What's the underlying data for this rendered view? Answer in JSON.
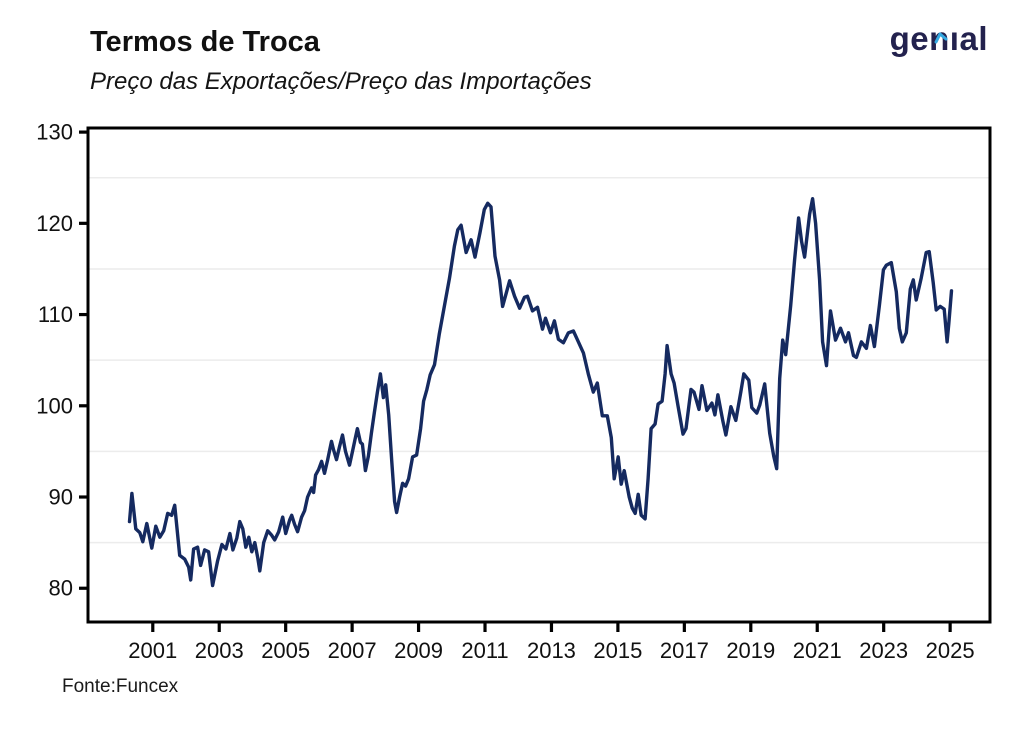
{
  "header": {
    "title": "Termos de Troca",
    "subtitle": "Preço das Exportações/Preço das Importações",
    "logo_text": "genıal",
    "logo_color": "#23224e",
    "logo_accent_color": "#35a9e1"
  },
  "footer": {
    "source": "Fonte:Funcex"
  },
  "chart_data": {
    "type": "line",
    "title": "Termos de Troca",
    "subtitle": "Preço das Exportações/Preço das Importações",
    "series_name": "Termos de Troca (Preço das Exportações / Preço das Importações)",
    "xlabel": "",
    "ylabel": "",
    "legend": "none",
    "grid": "horizontal-minor-only",
    "line_color": "#152a60",
    "grid_color": "#ececec",
    "axis_color": "#000000",
    "label_color": "#111111",
    "x_range": [
      1999.05,
      2026.2
    ],
    "y_range": [
      76.3,
      130.45
    ],
    "x_ticks": [
      2001,
      2003,
      2005,
      2007,
      2009,
      2011,
      2013,
      2015,
      2017,
      2019,
      2021,
      2023,
      2025
    ],
    "y_ticks": [
      80,
      90,
      100,
      110,
      120,
      130
    ],
    "y_minor_grid": [
      85,
      95,
      105,
      115,
      125
    ],
    "points": [
      [
        2000.3,
        87.3
      ],
      [
        2000.37,
        90.4
      ],
      [
        2000.49,
        86.5
      ],
      [
        2000.61,
        86.1
      ],
      [
        2000.7,
        85.1
      ],
      [
        2000.82,
        87.1
      ],
      [
        2000.97,
        84.4
      ],
      [
        2001.09,
        86.8
      ],
      [
        2001.21,
        85.6
      ],
      [
        2001.33,
        86.3
      ],
      [
        2001.45,
        88.2
      ],
      [
        2001.57,
        88.0
      ],
      [
        2001.66,
        89.1
      ],
      [
        2001.81,
        83.6
      ],
      [
        2001.96,
        83.2
      ],
      [
        2002.08,
        82.3
      ],
      [
        2002.14,
        80.9
      ],
      [
        2002.23,
        84.3
      ],
      [
        2002.35,
        84.5
      ],
      [
        2002.44,
        82.5
      ],
      [
        2002.56,
        84.2
      ],
      [
        2002.68,
        84.0
      ],
      [
        2002.8,
        80.3
      ],
      [
        2002.95,
        83.0
      ],
      [
        2003.08,
        84.8
      ],
      [
        2003.2,
        84.3
      ],
      [
        2003.32,
        86.0
      ],
      [
        2003.41,
        84.2
      ],
      [
        2003.53,
        85.5
      ],
      [
        2003.62,
        87.3
      ],
      [
        2003.71,
        86.5
      ],
      [
        2003.8,
        84.5
      ],
      [
        2003.89,
        85.6
      ],
      [
        2003.98,
        84.0
      ],
      [
        2004.07,
        85.0
      ],
      [
        2004.16,
        83.3
      ],
      [
        2004.22,
        81.9
      ],
      [
        2004.34,
        85.0
      ],
      [
        2004.46,
        86.3
      ],
      [
        2004.58,
        85.8
      ],
      [
        2004.67,
        85.3
      ],
      [
        2004.79,
        86.2
      ],
      [
        2004.91,
        87.8
      ],
      [
        2005.0,
        86.0
      ],
      [
        2005.12,
        87.5
      ],
      [
        2005.18,
        88.0
      ],
      [
        2005.27,
        87.0
      ],
      [
        2005.36,
        86.2
      ],
      [
        2005.48,
        87.8
      ],
      [
        2005.57,
        88.5
      ],
      [
        2005.66,
        90.0
      ],
      [
        2005.78,
        91.0
      ],
      [
        2005.84,
        90.5
      ],
      [
        2005.9,
        92.4
      ],
      [
        2005.99,
        93.0
      ],
      [
        2006.08,
        93.9
      ],
      [
        2006.17,
        92.6
      ],
      [
        2006.26,
        94.0
      ],
      [
        2006.38,
        96.1
      ],
      [
        2006.44,
        95.2
      ],
      [
        2006.53,
        94.1
      ],
      [
        2006.62,
        95.5
      ],
      [
        2006.71,
        96.8
      ],
      [
        2006.8,
        95.0
      ],
      [
        2006.92,
        93.5
      ],
      [
        2007.01,
        95.0
      ],
      [
        2007.1,
        96.5
      ],
      [
        2007.16,
        97.5
      ],
      [
        2007.25,
        96.0
      ],
      [
        2007.31,
        95.8
      ],
      [
        2007.4,
        92.9
      ],
      [
        2007.49,
        94.5
      ],
      [
        2007.58,
        97.0
      ],
      [
        2007.67,
        99.3
      ],
      [
        2007.76,
        101.5
      ],
      [
        2007.85,
        103.5
      ],
      [
        2007.94,
        100.9
      ],
      [
        2008.01,
        102.3
      ],
      [
        2008.1,
        99.0
      ],
      [
        2008.19,
        94.0
      ],
      [
        2008.28,
        89.5
      ],
      [
        2008.34,
        88.3
      ],
      [
        2008.43,
        90.0
      ],
      [
        2008.52,
        91.5
      ],
      [
        2008.61,
        91.2
      ],
      [
        2008.7,
        92.0
      ],
      [
        2008.82,
        94.4
      ],
      [
        2008.94,
        94.6
      ],
      [
        2009.06,
        97.5
      ],
      [
        2009.15,
        100.5
      ],
      [
        2009.25,
        101.8
      ],
      [
        2009.35,
        103.4
      ],
      [
        2009.48,
        104.5
      ],
      [
        2009.62,
        107.8
      ],
      [
        2009.78,
        111.0
      ],
      [
        2009.93,
        114.0
      ],
      [
        2010.08,
        117.5
      ],
      [
        2010.18,
        119.3
      ],
      [
        2010.28,
        119.8
      ],
      [
        2010.43,
        116.8
      ],
      [
        2010.58,
        118.2
      ],
      [
        2010.7,
        116.3
      ],
      [
        2010.85,
        119.0
      ],
      [
        2010.98,
        121.5
      ],
      [
        2011.08,
        122.2
      ],
      [
        2011.18,
        121.8
      ],
      [
        2011.3,
        116.4
      ],
      [
        2011.44,
        113.8
      ],
      [
        2011.53,
        110.9
      ],
      [
        2011.74,
        113.7
      ],
      [
        2011.89,
        112.0
      ],
      [
        2012.04,
        110.7
      ],
      [
        2012.19,
        111.9
      ],
      [
        2012.28,
        112.0
      ],
      [
        2012.43,
        110.4
      ],
      [
        2012.58,
        110.8
      ],
      [
        2012.73,
        108.4
      ],
      [
        2012.82,
        109.6
      ],
      [
        2012.97,
        108.0
      ],
      [
        2013.09,
        109.3
      ],
      [
        2013.21,
        107.3
      ],
      [
        2013.36,
        106.9
      ],
      [
        2013.51,
        108.0
      ],
      [
        2013.66,
        108.2
      ],
      [
        2013.81,
        107.0
      ],
      [
        2013.96,
        105.8
      ],
      [
        2014.11,
        103.5
      ],
      [
        2014.26,
        101.5
      ],
      [
        2014.38,
        102.5
      ],
      [
        2014.53,
        98.9
      ],
      [
        2014.68,
        98.9
      ],
      [
        2014.8,
        96.5
      ],
      [
        2014.89,
        92.0
      ],
      [
        2015.01,
        94.4
      ],
      [
        2015.1,
        91.4
      ],
      [
        2015.19,
        92.9
      ],
      [
        2015.34,
        90.0
      ],
      [
        2015.43,
        88.8
      ],
      [
        2015.52,
        88.2
      ],
      [
        2015.61,
        90.3
      ],
      [
        2015.7,
        88.0
      ],
      [
        2015.82,
        87.6
      ],
      [
        2015.91,
        92.0
      ],
      [
        2016.0,
        97.5
      ],
      [
        2016.12,
        98.0
      ],
      [
        2016.21,
        100.2
      ],
      [
        2016.33,
        100.5
      ],
      [
        2016.42,
        103.5
      ],
      [
        2016.48,
        106.6
      ],
      [
        2016.6,
        103.5
      ],
      [
        2016.69,
        102.5
      ],
      [
        2016.81,
        100.0
      ],
      [
        2016.96,
        96.9
      ],
      [
        2017.05,
        97.5
      ],
      [
        2017.2,
        101.8
      ],
      [
        2017.29,
        101.5
      ],
      [
        2017.44,
        99.6
      ],
      [
        2017.53,
        102.2
      ],
      [
        2017.68,
        99.5
      ],
      [
        2017.83,
        100.3
      ],
      [
        2017.92,
        99.0
      ],
      [
        2018.01,
        101.2
      ],
      [
        2018.16,
        98.3
      ],
      [
        2018.25,
        96.8
      ],
      [
        2018.4,
        99.9
      ],
      [
        2018.55,
        98.4
      ],
      [
        2018.7,
        101.5
      ],
      [
        2018.79,
        103.5
      ],
      [
        2018.94,
        102.8
      ],
      [
        2019.03,
        99.8
      ],
      [
        2019.18,
        99.2
      ],
      [
        2019.27,
        100.1
      ],
      [
        2019.42,
        102.4
      ],
      [
        2019.57,
        97.0
      ],
      [
        2019.69,
        94.5
      ],
      [
        2019.78,
        93.1
      ],
      [
        2019.87,
        103.0
      ],
      [
        2019.96,
        107.2
      ],
      [
        2020.05,
        105.6
      ],
      [
        2020.2,
        111.0
      ],
      [
        2020.32,
        116.0
      ],
      [
        2020.44,
        120.6
      ],
      [
        2020.53,
        118.0
      ],
      [
        2020.62,
        116.3
      ],
      [
        2020.77,
        121.0
      ],
      [
        2020.86,
        122.7
      ],
      [
        2020.95,
        120.0
      ],
      [
        2021.07,
        113.8
      ],
      [
        2021.16,
        107.0
      ],
      [
        2021.28,
        104.4
      ],
      [
        2021.4,
        110.4
      ],
      [
        2021.55,
        107.2
      ],
      [
        2021.7,
        108.5
      ],
      [
        2021.85,
        107.0
      ],
      [
        2021.94,
        108.0
      ],
      [
        2022.09,
        105.5
      ],
      [
        2022.18,
        105.3
      ],
      [
        2022.33,
        107.0
      ],
      [
        2022.48,
        106.3
      ],
      [
        2022.6,
        108.8
      ],
      [
        2022.72,
        106.5
      ],
      [
        2022.87,
        111.0
      ],
      [
        2022.99,
        114.9
      ],
      [
        2023.08,
        115.4
      ],
      [
        2023.23,
        115.7
      ],
      [
        2023.38,
        112.5
      ],
      [
        2023.47,
        108.5
      ],
      [
        2023.56,
        107.0
      ],
      [
        2023.68,
        108.0
      ],
      [
        2023.8,
        112.8
      ],
      [
        2023.89,
        113.8
      ],
      [
        2023.98,
        111.6
      ],
      [
        2024.13,
        114.0
      ],
      [
        2024.28,
        116.8
      ],
      [
        2024.37,
        116.9
      ],
      [
        2024.49,
        113.5
      ],
      [
        2024.58,
        110.5
      ],
      [
        2024.7,
        110.9
      ],
      [
        2024.82,
        110.6
      ],
      [
        2024.91,
        107.0
      ],
      [
        2024.96,
        109.0
      ],
      [
        2025.04,
        112.6
      ]
    ]
  }
}
